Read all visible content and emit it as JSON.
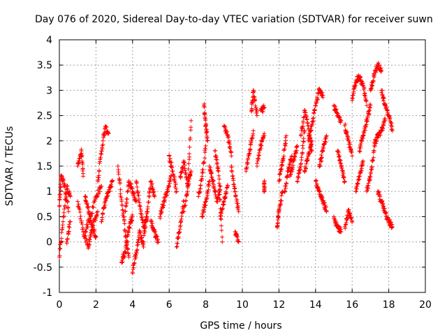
{
  "chart_data": {
    "type": "scatter",
    "title": "Day 076 of 2020, Sidereal Day-to-day VTEC variation (SDTVAR) for receiver suwn",
    "xlabel": "GPS time / hours",
    "ylabel": "SDTVAR / TECUs",
    "xlim": [
      0,
      20
    ],
    "ylim": [
      -1,
      4
    ],
    "x_ticks": [
      0,
      2,
      4,
      6,
      8,
      10,
      12,
      14,
      16,
      18,
      20
    ],
    "y_ticks": [
      -1,
      -0.5,
      0,
      0.5,
      1,
      1.5,
      2,
      2.5,
      3,
      3.5,
      4
    ],
    "grid": true,
    "marker": "+",
    "color": "#ff0000",
    "segments": [
      {
        "x": [
          0.0,
          0.2,
          0.4,
          0.6
        ],
        "y": [
          -0.3,
          0.4,
          1.1,
          0.9
        ]
      },
      {
        "x": [
          0.0,
          0.1,
          0.3,
          0.5
        ],
        "y": [
          0.7,
          1.3,
          1.1,
          0.6
        ]
      },
      {
        "x": [
          0.4,
          0.6
        ],
        "y": [
          0.0,
          0.4
        ]
      },
      {
        "x": [
          1.0,
          1.2,
          1.3
        ],
        "y": [
          1.5,
          1.8,
          1.3
        ]
      },
      {
        "x": [
          1.0,
          1.3,
          1.6,
          1.8,
          2.1
        ],
        "y": [
          0.8,
          0.2,
          -0.1,
          0.3,
          0.6
        ]
      },
      {
        "x": [
          1.4,
          1.7,
          2.0,
          2.3
        ],
        "y": [
          0.2,
          0.5,
          0.9,
          1.1
        ]
      },
      {
        "x": [
          1.4,
          1.6,
          1.8,
          2.0
        ],
        "y": [
          0.9,
          0.6,
          0.3,
          0.1
        ]
      },
      {
        "x": [
          2.1,
          2.3,
          2.5,
          2.7
        ],
        "y": [
          1.2,
          1.8,
          2.25,
          2.15
        ]
      },
      {
        "x": [
          2.3,
          2.5,
          2.7,
          2.9
        ],
        "y": [
          0.4,
          0.8,
          1.0,
          1.2
        ]
      },
      {
        "x": [
          3.2,
          3.4,
          3.6,
          3.8
        ],
        "y": [
          1.5,
          0.8,
          0.2,
          -0.3
        ]
      },
      {
        "x": [
          3.4,
          3.6,
          3.8,
          4.0
        ],
        "y": [
          -0.4,
          -0.2,
          0.3,
          0.5
        ]
      },
      {
        "x": [
          3.6,
          3.8,
          4.0,
          4.2
        ],
        "y": [
          0.6,
          1.2,
          1.0,
          0.8
        ]
      },
      {
        "x": [
          4.0,
          4.2,
          4.4,
          4.6
        ],
        "y": [
          -0.6,
          -0.2,
          0.2,
          -0.1
        ]
      },
      {
        "x": [
          4.2,
          4.4,
          4.6,
          4.8
        ],
        "y": [
          1.2,
          0.7,
          0.3,
          0.5
        ]
      },
      {
        "x": [
          4.6,
          4.8,
          5.0,
          5.2
        ],
        "y": [
          0.0,
          0.6,
          1.2,
          0.9
        ]
      },
      {
        "x": [
          5.0,
          5.2,
          5.4
        ],
        "y": [
          0.4,
          0.2,
          0.0
        ]
      },
      {
        "x": [
          5.5,
          5.7,
          5.9,
          6.1
        ],
        "y": [
          0.5,
          0.8,
          1.0,
          1.3
        ]
      },
      {
        "x": [
          6.0,
          6.2,
          6.4
        ],
        "y": [
          1.7,
          1.4,
          1.0
        ]
      },
      {
        "x": [
          6.4,
          6.6,
          6.8
        ],
        "y": [
          -0.1,
          0.3,
          0.8
        ]
      },
      {
        "x": [
          6.6,
          6.8,
          7.0,
          7.2
        ],
        "y": [
          1.3,
          1.6,
          1.1,
          1.4
        ]
      },
      {
        "x": [
          6.8,
          7.0,
          7.2
        ],
        "y": [
          0.6,
          1.0,
          2.4
        ]
      },
      {
        "x": [
          7.6,
          7.8,
          8.0
        ],
        "y": [
          0.9,
          1.3,
          1.9
        ]
      },
      {
        "x": [
          7.8,
          8.0,
          8.2
        ],
        "y": [
          0.5,
          0.8,
          1.2
        ]
      },
      {
        "x": [
          7.9,
          8.0,
          8.1
        ],
        "y": [
          2.7,
          2.3,
          2.0
        ]
      },
      {
        "x": [
          8.2,
          8.4,
          8.6,
          8.8
        ],
        "y": [
          1.5,
          1.2,
          0.8,
          1.1
        ]
      },
      {
        "x": [
          8.5,
          8.7,
          8.9
        ],
        "y": [
          1.8,
          1.4,
          0.0
        ]
      },
      {
        "x": [
          8.8,
          9.0,
          9.2
        ],
        "y": [
          0.5,
          0.8,
          1.1
        ]
      },
      {
        "x": [
          9.0,
          9.2,
          9.4
        ],
        "y": [
          2.3,
          2.1,
          1.7
        ]
      },
      {
        "x": [
          9.4,
          9.6,
          9.8
        ],
        "y": [
          1.5,
          1.0,
          0.6
        ]
      },
      {
        "x": [
          9.6,
          9.8
        ],
        "y": [
          0.2,
          0.0
        ]
      },
      {
        "x": [
          10.2,
          10.4,
          10.6
        ],
        "y": [
          1.4,
          1.8,
          2.2
        ]
      },
      {
        "x": [
          10.5,
          10.6,
          10.8
        ],
        "y": [
          2.6,
          3.0,
          2.5
        ]
      },
      {
        "x": [
          10.8,
          11.0,
          11.2
        ],
        "y": [
          1.5,
          1.9,
          2.1
        ]
      },
      {
        "x": [
          11.0,
          11.2
        ],
        "y": [
          2.6,
          2.65
        ]
      },
      {
        "x": [
          11.2,
          11.2
        ],
        "y": [
          1.2,
          1.0
        ]
      },
      {
        "x": [
          11.9,
          12.0,
          12.2
        ],
        "y": [
          0.3,
          0.6,
          1.0
        ]
      },
      {
        "x": [
          12.0,
          12.2,
          12.4
        ],
        "y": [
          1.2,
          1.6,
          2.1
        ]
      },
      {
        "x": [
          12.3,
          12.5,
          12.7
        ],
        "y": [
          1.0,
          1.4,
          1.7
        ]
      },
      {
        "x": [
          12.6,
          12.8,
          13.0
        ],
        "y": [
          1.3,
          1.6,
          1.9
        ]
      },
      {
        "x": [
          13.0,
          13.2,
          13.4
        ],
        "y": [
          1.2,
          1.5,
          2.2
        ]
      },
      {
        "x": [
          13.2,
          13.4,
          13.6,
          13.8
        ],
        "y": [
          2.1,
          2.6,
          2.3,
          1.8
        ]
      },
      {
        "x": [
          13.4,
          13.6,
          13.8
        ],
        "y": [
          1.4,
          1.7,
          2.0
        ]
      },
      {
        "x": [
          13.6,
          13.8,
          14.0,
          14.2,
          14.4
        ],
        "y": [
          2.0,
          2.3,
          2.7,
          3.0,
          2.9
        ]
      },
      {
        "x": [
          14.0,
          14.2,
          14.4,
          14.6
        ],
        "y": [
          1.2,
          1.0,
          0.8,
          0.6
        ]
      },
      {
        "x": [
          14.2,
          14.4,
          14.6
        ],
        "y": [
          1.5,
          1.8,
          2.1
        ]
      },
      {
        "x": [
          15.0,
          15.2,
          15.4
        ],
        "y": [
          2.7,
          2.5,
          2.4
        ]
      },
      {
        "x": [
          15.0,
          15.2,
          15.4
        ],
        "y": [
          0.5,
          0.3,
          0.2
        ]
      },
      {
        "x": [
          15.2,
          15.4,
          15.6
        ],
        "y": [
          1.8,
          1.5,
          1.2
        ]
      },
      {
        "x": [
          15.6,
          15.8,
          16.0
        ],
        "y": [
          0.3,
          0.6,
          0.4
        ]
      },
      {
        "x": [
          15.6,
          15.8,
          16.0
        ],
        "y": [
          2.3,
          2.0,
          1.7
        ]
      },
      {
        "x": [
          16.0,
          16.2,
          16.4,
          16.6,
          16.8
        ],
        "y": [
          2.8,
          3.2,
          3.25,
          3.1,
          2.7
        ]
      },
      {
        "x": [
          16.2,
          16.4,
          16.6
        ],
        "y": [
          1.0,
          1.3,
          1.6
        ]
      },
      {
        "x": [
          16.4,
          16.6,
          16.8,
          17.0
        ],
        "y": [
          1.8,
          2.1,
          2.4,
          2.7
        ]
      },
      {
        "x": [
          16.8,
          17.0,
          17.2
        ],
        "y": [
          1.0,
          1.3,
          1.8
        ]
      },
      {
        "x": [
          17.0,
          17.2,
          17.4,
          17.6
        ],
        "y": [
          3.0,
          3.3,
          3.5,
          3.4
        ]
      },
      {
        "x": [
          17.2,
          17.4,
          17.6,
          17.8
        ],
        "y": [
          1.9,
          2.1,
          2.2,
          2.4
        ]
      },
      {
        "x": [
          17.4,
          17.6,
          17.8,
          18.0,
          18.2
        ],
        "y": [
          1.0,
          0.8,
          0.6,
          0.4,
          0.3
        ]
      },
      {
        "x": [
          17.6,
          17.8,
          18.0,
          18.2
        ],
        "y": [
          3.0,
          2.7,
          2.5,
          2.2
        ]
      }
    ]
  }
}
